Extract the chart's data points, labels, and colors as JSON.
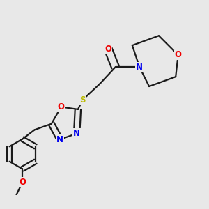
{
  "bg_color": "#e8e8e8",
  "atom_colors": {
    "C": "#1a1a1a",
    "N": "#0000ee",
    "O": "#ee0000",
    "S": "#bbbb00"
  },
  "bond_color": "#1a1a1a",
  "bond_width": 1.6,
  "font_size": 8.5,
  "fig_size": [
    3.0,
    3.0
  ],
  "dpi": 100
}
